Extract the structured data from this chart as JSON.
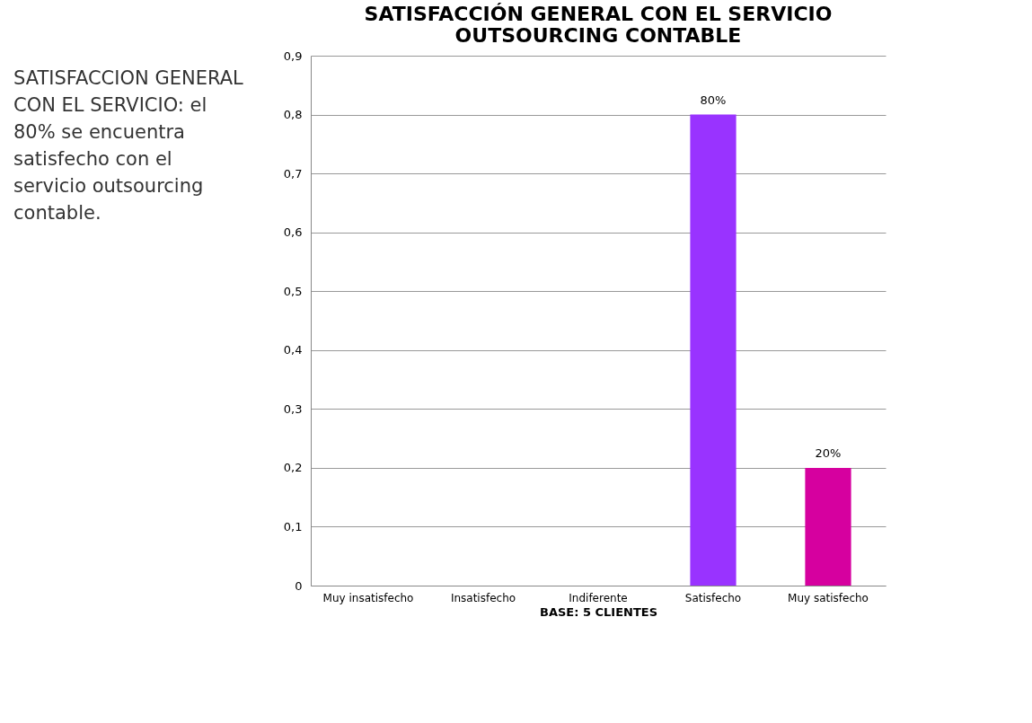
{
  "chart_data": {
    "type": "bar",
    "title": "SATISFACCIÓN GENERAL CON EL SERVICIO OUTSOURCING CONTABLE",
    "xlabel": "BASE: 5 CLIENTES",
    "categories": [
      "Muy insatisfecho",
      "Insatisfecho",
      "Indiferente",
      "Satisfecho",
      "Muy satisfecho"
    ],
    "values": [
      0,
      0,
      0,
      0.8,
      0.2
    ],
    "colors": [
      "#9933ff",
      "#9933ff",
      "#9933ff",
      "#9933ff",
      "#d6009f"
    ],
    "value_labels": [
      null,
      null,
      null,
      "80%",
      "20%"
    ],
    "ylim": [
      0,
      0.9
    ],
    "yticks": [
      0,
      {
        "value": 0.1,
        "label": "0,1"
      },
      {
        "value": 0.2,
        "label": "0,2"
      },
      {
        "value": 0.3,
        "label": "0,3"
      },
      {
        "value": 0.4,
        "label": "0,4"
      },
      {
        "value": 0.5,
        "label": "0,5"
      },
      {
        "value": 0.6,
        "label": "0,6"
      },
      {
        "value": 0.7,
        "label": "0,7"
      },
      {
        "value": 0.8,
        "label": "0,8"
      },
      {
        "value": 0.9,
        "label": "0,9"
      }
    ],
    "grid": "y",
    "annotations": [
      "SATISFACCION GENERAL CON EL SERVICIO: el 80% se encuentra satisfecho con el servicio outsourcing contable."
    ]
  }
}
